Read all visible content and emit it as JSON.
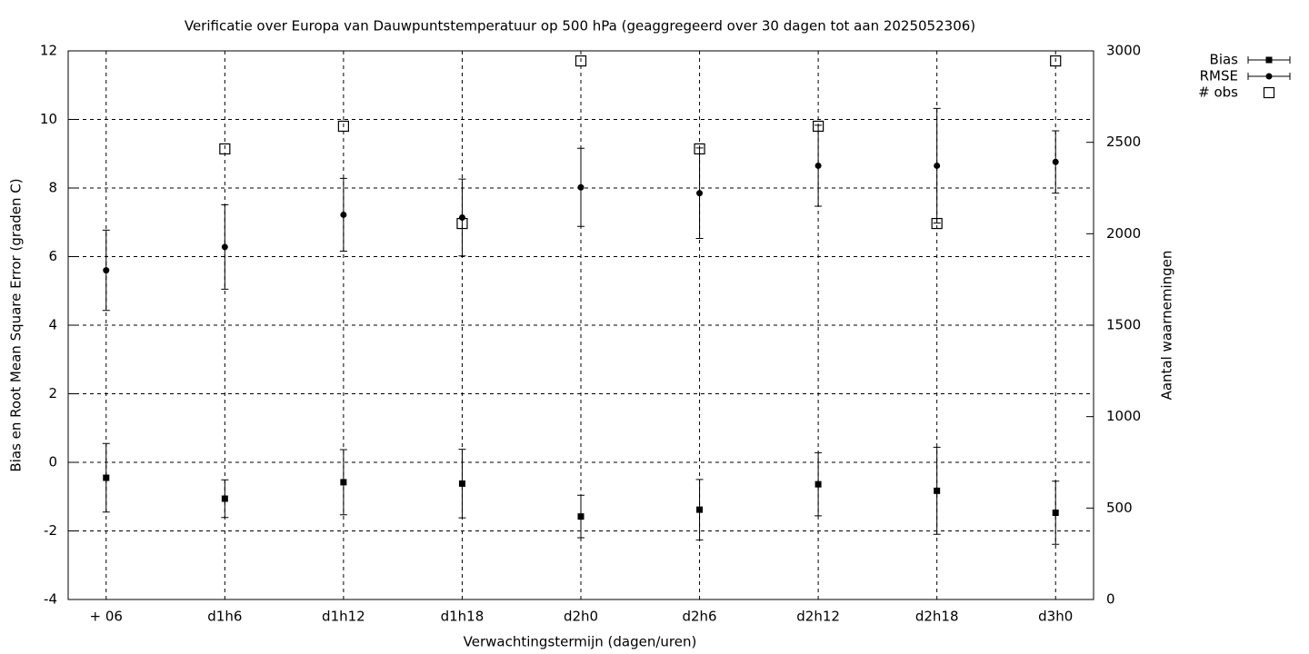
{
  "chart_data": {
    "type": "errorbar",
    "title": "Verificatie over Europa van Dauwpuntstemperatuur op 500 hPa (geaggregeerd over 30 dagen tot aan 2025052306)",
    "x_label": "Verwachtingstermijn (dagen/uren)",
    "y_label": "Bias en Root Mean Square Error (graden C)",
    "y2_label": "Aantal waarnemingen",
    "categories": [
      "+ 06",
      "d1h6",
      "d1h12",
      "d1h18",
      "d2h0",
      "d2h6",
      "d2h12",
      "d2h18",
      "d3h0"
    ],
    "ylim": [
      -4,
      12
    ],
    "yticks": [
      -4,
      -2,
      0,
      2,
      4,
      6,
      8,
      10,
      12
    ],
    "y2lim": [
      0,
      3000
    ],
    "y2ticks": [
      0,
      500,
      1000,
      1500,
      2000,
      2500,
      3000
    ],
    "grid": true,
    "legend": "top-right",
    "series": [
      {
        "name": "Bias",
        "color": "#000000",
        "marker": "square",
        "values": [
          -0.45,
          -1.06,
          -0.58,
          -0.62,
          -1.58,
          -1.38,
          -0.64,
          -0.83,
          -1.47
        ],
        "errors": [
          1.0,
          0.55,
          0.95,
          1.0,
          0.62,
          0.88,
          0.92,
          1.27,
          0.92
        ]
      },
      {
        "name": "RMSE",
        "color": "#000000",
        "marker": "circle",
        "values": [
          5.6,
          6.28,
          7.22,
          7.14,
          8.02,
          7.85,
          8.65,
          8.65,
          8.76
        ],
        "errors": [
          1.17,
          1.23,
          1.06,
          1.12,
          1.14,
          1.32,
          1.18,
          1.67,
          0.91
        ]
      },
      {
        "name": "# obs",
        "color": "#000000",
        "marker": "open-square",
        "axis": "y2",
        "values": [
          null,
          2464,
          2588,
          2056,
          2945,
          2464,
          2588,
          2056,
          2945
        ]
      }
    ]
  }
}
